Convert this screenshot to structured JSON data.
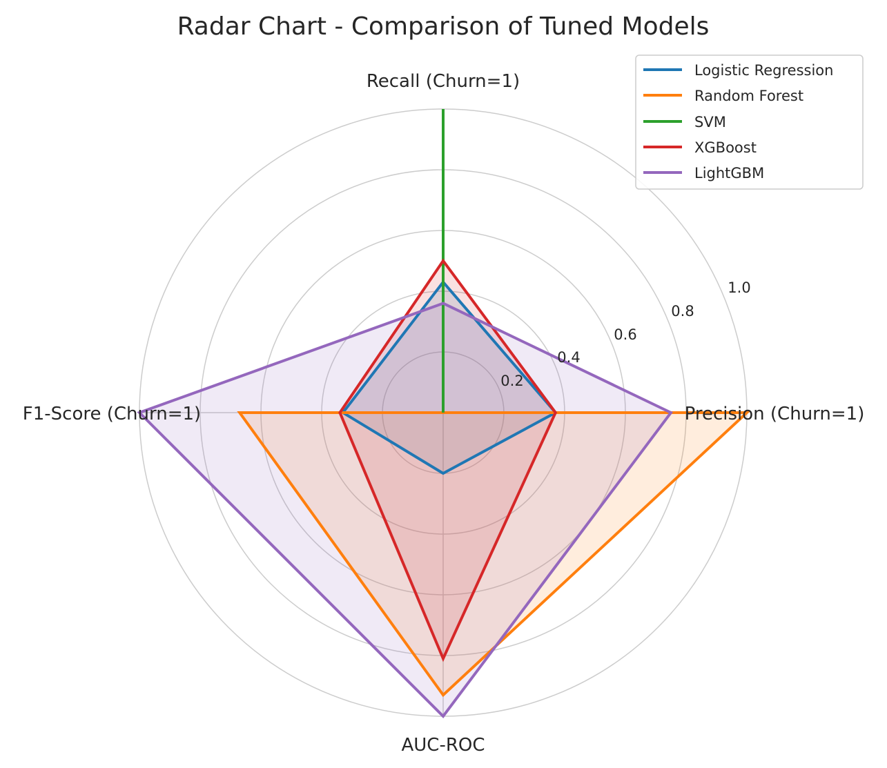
{
  "chart_data": {
    "type": "radar",
    "title": "Radar Chart - Comparison of Tuned Models",
    "axes": [
      "Precision (Churn=1)",
      "Recall (Churn=1)",
      "F1-Score (Churn=1)",
      "AUC-ROC"
    ],
    "radial_ticks": [
      "0.2",
      "0.4",
      "0.6",
      "0.8",
      "1.0"
    ],
    "radial_range": [
      0,
      1.0
    ],
    "grid": true,
    "legend_position": "top-right",
    "series": [
      {
        "name": "Logistic Regression",
        "color": "#1f77b4",
        "values": [
          0.37,
          0.43,
          0.33,
          0.2
        ]
      },
      {
        "name": "Random Forest",
        "color": "#ff7f0e",
        "values": [
          1.0,
          0.0,
          0.67,
          0.93
        ]
      },
      {
        "name": "SVM",
        "color": "#2ca02c",
        "values": [
          0.0,
          1.0,
          0.0,
          0.0
        ]
      },
      {
        "name": "XGBoost",
        "color": "#d62728",
        "values": [
          0.37,
          0.5,
          0.34,
          0.81
        ]
      },
      {
        "name": "LightGBM",
        "color": "#9467bd",
        "values": [
          0.75,
          0.36,
          1.0,
          1.0
        ]
      }
    ]
  }
}
